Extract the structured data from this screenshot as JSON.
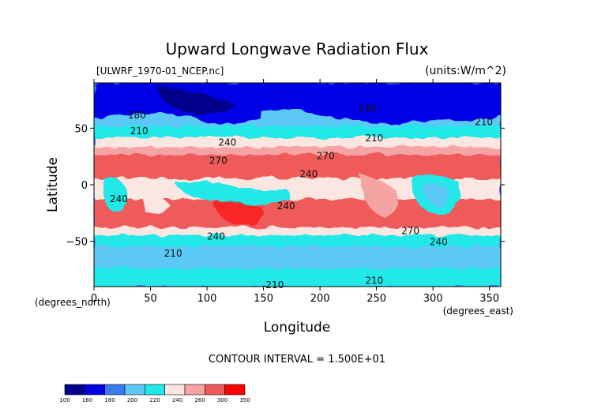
{
  "chart_data": {
    "type": "heatmap",
    "title": "Upward Longwave Radiation Flux",
    "file_label": "[ULWRF_1970-01_NCEP.nc]",
    "units_label": "(units:W/m^2)",
    "xlabel": "Longitude",
    "ylabel": "Latitude",
    "x_unit_label": "(degrees_east)",
    "y_unit_label": "(degrees_north)",
    "xlim": [
      0,
      360
    ],
    "ylim": [
      -90,
      90
    ],
    "x_ticks": [
      0,
      50,
      100,
      150,
      200,
      250,
      300,
      350
    ],
    "y_ticks": [
      -50,
      0,
      50
    ],
    "contour_interval_text": "CONTOUR INTERVAL = 1.500E+01",
    "contour_labels": [
      {
        "text": "180",
        "lon": 38,
        "lat": 62
      },
      {
        "text": "180",
        "lon": 242,
        "lat": 68
      },
      {
        "text": "210",
        "lon": 40,
        "lat": 48
      },
      {
        "text": "210",
        "lon": 248,
        "lat": 42
      },
      {
        "text": "210",
        "lon": 345,
        "lat": 56
      },
      {
        "text": "240",
        "lon": 118,
        "lat": 38
      },
      {
        "text": "240",
        "lon": 190,
        "lat": 10
      },
      {
        "text": "270",
        "lon": 110,
        "lat": 22
      },
      {
        "text": "270",
        "lon": 205,
        "lat": 26
      },
      {
        "text": "240",
        "lon": 22,
        "lat": -12
      },
      {
        "text": "240",
        "lon": 170,
        "lat": -18
      },
      {
        "text": "240",
        "lon": 108,
        "lat": -45
      },
      {
        "text": "240",
        "lon": 305,
        "lat": -50
      },
      {
        "text": "270",
        "lon": 280,
        "lat": -40
      },
      {
        "text": "210",
        "lon": 70,
        "lat": -60
      },
      {
        "text": "210",
        "lon": 160,
        "lat": -88
      },
      {
        "text": "210",
        "lon": 248,
        "lat": -84
      }
    ],
    "colorbar": {
      "tick_labels": [
        "100",
        "160",
        "180",
        "200",
        "220",
        "240",
        "260",
        "300",
        "350"
      ],
      "colors": [
        "#00008a",
        "#0000e6",
        "#3a7cf0",
        "#5cc8f5",
        "#20e8e8",
        "#fbe6e2",
        "#f5a3a3",
        "#ef5a5a",
        "#ff0000"
      ]
    }
  }
}
